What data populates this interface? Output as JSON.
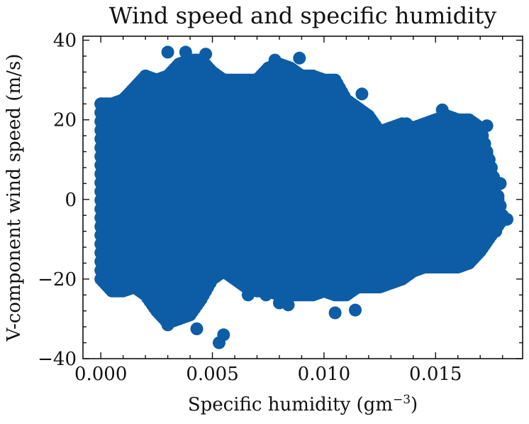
{
  "chart_data": {
    "type": "scatter",
    "title": "Wind speed and specific humidity",
    "xlabel": "Specific humidity (gm",
    "xlabel_sup": "−3",
    "xlabel_close": ")",
    "ylabel": "V-component wind speed (m/s)",
    "xlim": [
      -0.0008,
      0.0189
    ],
    "ylim": [
      -40,
      41
    ],
    "x_ticks": [
      0.0,
      0.005,
      0.01,
      0.015
    ],
    "x_tick_labels": [
      "0.000",
      "0.005",
      "0.010",
      "0.015"
    ],
    "y_ticks": [
      -40,
      -20,
      0,
      20,
      40
    ],
    "y_tick_labels": [
      "−40",
      "−20",
      "0",
      "20",
      "40"
    ],
    "x_minor_step": 0.001,
    "y_minor_step": 4,
    "grid": false,
    "marker_color": "#0c5da5",
    "series": [
      {
        "values_note": "",
        "envelope": [
          {
            "x": 0.0,
            "ymin": -20,
            "ymax": 24
          },
          {
            "x": 0.0005,
            "ymin": -23,
            "ymax": 24
          },
          {
            "x": 0.001,
            "ymin": -23,
            "ymax": 25
          },
          {
            "x": 0.0015,
            "ymin": -22,
            "ymax": 28
          },
          {
            "x": 0.002,
            "ymin": -24,
            "ymax": 31
          },
          {
            "x": 0.0025,
            "ymin": -28,
            "ymax": 30
          },
          {
            "x": 0.003,
            "ymin": -31,
            "ymax": 31
          },
          {
            "x": 0.0035,
            "ymin": -30,
            "ymax": 34
          },
          {
            "x": 0.004,
            "ymin": -29,
            "ymax": 35
          },
          {
            "x": 0.0045,
            "ymin": -25,
            "ymax": 35
          },
          {
            "x": 0.005,
            "ymin": -20,
            "ymax": 32
          },
          {
            "x": 0.0055,
            "ymin": -18,
            "ymax": 30
          },
          {
            "x": 0.006,
            "ymin": -20,
            "ymax": 30
          },
          {
            "x": 0.0065,
            "ymin": -22,
            "ymax": 30
          },
          {
            "x": 0.007,
            "ymin": -23,
            "ymax": 30
          },
          {
            "x": 0.0075,
            "ymin": -23,
            "ymax": 33
          },
          {
            "x": 0.008,
            "ymin": -24,
            "ymax": 34
          },
          {
            "x": 0.0085,
            "ymin": -24,
            "ymax": 33
          },
          {
            "x": 0.009,
            "ymin": -24,
            "ymax": 31
          },
          {
            "x": 0.0095,
            "ymin": -24,
            "ymax": 31
          },
          {
            "x": 0.01,
            "ymin": -23,
            "ymax": 30
          },
          {
            "x": 0.0105,
            "ymin": -24,
            "ymax": 30
          },
          {
            "x": 0.011,
            "ymin": -24,
            "ymax": 25
          },
          {
            "x": 0.0115,
            "ymin": -22,
            "ymax": 23
          },
          {
            "x": 0.012,
            "ymin": -22,
            "ymax": 21
          },
          {
            "x": 0.0125,
            "ymin": -22,
            "ymax": 17
          },
          {
            "x": 0.013,
            "ymin": -21,
            "ymax": 18
          },
          {
            "x": 0.0135,
            "ymin": -20,
            "ymax": 19
          },
          {
            "x": 0.014,
            "ymin": -18,
            "ymax": 18
          },
          {
            "x": 0.0145,
            "ymin": -17,
            "ymax": 19
          },
          {
            "x": 0.015,
            "ymin": -17,
            "ymax": 20
          },
          {
            "x": 0.0155,
            "ymin": -17,
            "ymax": 21
          },
          {
            "x": 0.016,
            "ymin": -17,
            "ymax": 20
          },
          {
            "x": 0.0165,
            "ymin": -16,
            "ymax": 20
          },
          {
            "x": 0.017,
            "ymin": -13,
            "ymax": 18
          },
          {
            "x": 0.0175,
            "ymin": -9,
            "ymax": 8
          },
          {
            "x": 0.018,
            "ymin": -5,
            "ymax": -4
          }
        ],
        "outliers": [
          [
            0.003,
            37
          ],
          [
            0.0038,
            37
          ],
          [
            0.0047,
            36.5
          ],
          [
            0.0053,
            -36
          ],
          [
            0.0055,
            -34
          ],
          [
            0.0043,
            -32.5
          ],
          [
            0.003,
            -31.5
          ],
          [
            0.0105,
            -28.5
          ],
          [
            0.0114,
            -27.8
          ],
          [
            0.0084,
            -26.5
          ],
          [
            0.008,
            -26
          ],
          [
            0.0066,
            -24
          ],
          [
            0.0074,
            -24
          ],
          [
            0.0089,
            35.5
          ],
          [
            0.0078,
            35
          ],
          [
            0.0117,
            26.5
          ],
          [
            0.0153,
            22.5
          ],
          [
            0.0173,
            18.5
          ],
          [
            0.0179,
            4
          ],
          [
            0.0182,
            -5
          ],
          [
            0.0177,
            -8
          ],
          [
            0.0137,
            19
          ]
        ]
      }
    ]
  }
}
